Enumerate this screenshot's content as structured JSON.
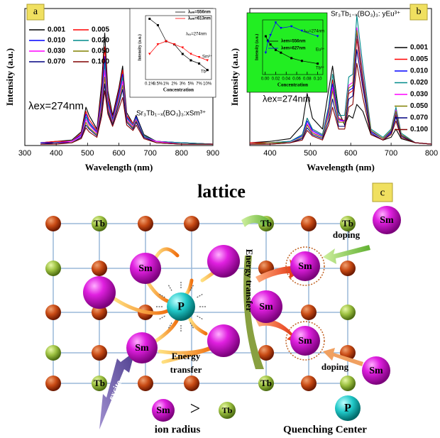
{
  "chart_data": [
    {
      "type": "line",
      "panel_label": "a",
      "x_label": "Wavelength (nm)",
      "y_label": "Intensity (a.u.)",
      "x": [
        350,
        400,
        450,
        480,
        495,
        505,
        530,
        545,
        555,
        565,
        580,
        600,
        612,
        625,
        645,
        655,
        680,
        720,
        800,
        900
      ],
      "xlim": [
        300,
        900
      ],
      "xticks": [
        300,
        400,
        500,
        600,
        700,
        800,
        900
      ],
      "ylim": [
        0,
        100
      ],
      "grid": false,
      "legend": "upper left",
      "annotations": [
        "λex=274nm",
        "Sr₃Tb₁₋ₓ(BO₃)₃:xSm³⁺"
      ],
      "series": [
        {
          "name": "0.001",
          "color": "#000000",
          "values": [
            2,
            3,
            4,
            10,
            28,
            22,
            12,
            45,
            82,
            40,
            22,
            42,
            58,
            24,
            16,
            22,
            8,
            3,
            2,
            1
          ]
        },
        {
          "name": "0.005",
          "color": "#ff0000",
          "values": [
            2,
            3,
            3,
            9,
            25,
            19,
            11,
            40,
            72,
            36,
            20,
            40,
            55,
            22,
            16,
            21,
            7,
            3,
            2,
            1
          ]
        },
        {
          "name": "0.010",
          "color": "#0000ff",
          "values": [
            2,
            2,
            3,
            8,
            23,
            17,
            10,
            36,
            65,
            33,
            19,
            38,
            52,
            21,
            15,
            21,
            7,
            3,
            2,
            1
          ]
        },
        {
          "name": "0.020",
          "color": "#008b8b",
          "values": [
            1,
            2,
            3,
            7,
            21,
            16,
            9,
            33,
            60,
            31,
            18,
            36,
            50,
            20,
            15,
            20,
            7,
            3,
            2,
            1
          ]
        },
        {
          "name": "0.030",
          "color": "#ff00ff",
          "values": [
            1,
            2,
            3,
            7,
            19,
            15,
            9,
            30,
            55,
            29,
            17,
            34,
            47,
            19,
            14,
            19,
            6,
            3,
            1,
            1
          ]
        },
        {
          "name": "0.050",
          "color": "#808000",
          "values": [
            1,
            2,
            2,
            6,
            17,
            13,
            8,
            27,
            50,
            27,
            16,
            32,
            44,
            18,
            13,
            18,
            6,
            2,
            1,
            1
          ]
        },
        {
          "name": "0.070",
          "color": "#000080",
          "values": [
            1,
            2,
            2,
            6,
            15,
            12,
            7,
            24,
            45,
            25,
            15,
            30,
            41,
            17,
            12,
            17,
            6,
            2,
            1,
            1
          ]
        },
        {
          "name": "0.100",
          "color": "#800000",
          "values": [
            1,
            1,
            2,
            5,
            13,
            10,
            6,
            21,
            40,
            23,
            14,
            27,
            35,
            15,
            11,
            15,
            5,
            2,
            1,
            1
          ]
        }
      ]
    },
    {
      "type": "line",
      "x_label": "Concentration",
      "y_label": "Intensity (a.u.)",
      "background": "#ffffff",
      "categories": [
        "0.1%",
        "0.5%",
        "1%",
        "2%",
        "3%",
        "5%",
        "7%",
        "10%"
      ],
      "ylim": [
        0,
        100
      ],
      "legend": "upper right",
      "annotations": [
        "λₑₓ=274nm",
        "Sm³⁺",
        "Tb³⁺"
      ],
      "series": [
        {
          "name": "λₑₘ=556nm",
          "color": "#000000",
          "marker": "square",
          "values": [
            95,
            85,
            60,
            55,
            40,
            30,
            25,
            15
          ]
        },
        {
          "name": "λₑₘ=613nm",
          "color": "#ff0000",
          "marker": "triangle",
          "values": [
            40,
            55,
            60,
            55,
            50,
            40,
            35,
            30
          ]
        }
      ]
    },
    {
      "type": "line",
      "panel_label": "b",
      "x_label": "Wavelength (nm)",
      "y_label": "Intensity (a.u.)",
      "x": [
        350,
        400,
        450,
        480,
        492,
        505,
        530,
        545,
        555,
        570,
        585,
        595,
        605,
        615,
        630,
        650,
        680,
        700,
        712,
        725,
        760,
        800
      ],
      "xlim": [
        350,
        800
      ],
      "xticks": [
        400,
        500,
        600,
        700,
        800
      ],
      "ylim": [
        0,
        100
      ],
      "grid": false,
      "legend": "right",
      "annotations": [
        "λex=274nm",
        "Sr₃Tb₁₋ₓ(BO₃)₃: yEu³⁺"
      ],
      "series": [
        {
          "name": "0.001",
          "color": "#000000",
          "values": [
            2,
            3,
            5,
            15,
            38,
            20,
            12,
            40,
            58,
            25,
            15,
            22,
            20,
            30,
            25,
            8,
            4,
            6,
            12,
            5,
            2,
            1
          ]
        },
        {
          "name": "0.005",
          "color": "#ff0000",
          "values": [
            2,
            2,
            3,
            8,
            20,
            12,
            8,
            28,
            48,
            20,
            18,
            38,
            40,
            78,
            45,
            10,
            5,
            10,
            22,
            8,
            2,
            1
          ]
        },
        {
          "name": "0.010",
          "color": "#0000ff",
          "values": [
            1,
            2,
            3,
            7,
            18,
            11,
            7,
            26,
            45,
            19,
            18,
            40,
            42,
            82,
            48,
            10,
            5,
            10,
            24,
            8,
            2,
            1
          ]
        },
        {
          "name": "0.020",
          "color": "#008b8b",
          "values": [
            1,
            2,
            3,
            8,
            20,
            12,
            8,
            28,
            52,
            22,
            22,
            50,
            52,
            95,
            58,
            12,
            6,
            12,
            28,
            9,
            2,
            1
          ]
        },
        {
          "name": "0.030",
          "color": "#ff00ff",
          "values": [
            1,
            2,
            2,
            6,
            16,
            10,
            6,
            24,
            42,
            18,
            18,
            44,
            46,
            86,
            52,
            11,
            5,
            11,
            26,
            8,
            2,
            1
          ]
        },
        {
          "name": "0.050",
          "color": "#808000",
          "values": [
            1,
            2,
            2,
            6,
            15,
            9,
            6,
            22,
            40,
            17,
            17,
            42,
            44,
            84,
            50,
            11,
            5,
            11,
            25,
            8,
            2,
            1
          ]
        },
        {
          "name": "0.070",
          "color": "#000080",
          "values": [
            1,
            1,
            2,
            5,
            13,
            8,
            5,
            18,
            34,
            14,
            14,
            34,
            36,
            70,
            42,
            9,
            4,
            9,
            21,
            7,
            2,
            1
          ]
        },
        {
          "name": "0.100",
          "color": "#800000",
          "values": [
            1,
            1,
            2,
            4,
            11,
            7,
            4,
            15,
            28,
            12,
            12,
            28,
            30,
            60,
            35,
            8,
            4,
            8,
            18,
            6,
            2,
            1
          ]
        }
      ]
    },
    {
      "type": "line",
      "x_label": "Concentration",
      "y_label": "Intensity (a.u.)",
      "background": "#22ee22",
      "x": [
        0.001,
        0.005,
        0.01,
        0.02,
        0.03,
        0.05,
        0.07,
        0.1
      ],
      "xlim": [
        -0.005,
        0.11
      ],
      "xticks": [
        {
          "value": 0,
          "label": "0.00"
        },
        {
          "value": 0.02,
          "label": "0.02"
        },
        {
          "value": 0.04,
          "label": "0.04"
        },
        {
          "value": 0.06,
          "label": "0.06"
        },
        {
          "value": 0.08,
          "label": "0.08"
        },
        {
          "value": 0.1,
          "label": "0.10"
        }
      ],
      "ylim": [
        0,
        100
      ],
      "legend": "center",
      "annotations": [
        "λₑₓ=274nm",
        "Eu³⁺",
        "Tb³⁺"
      ],
      "series": [
        {
          "name": "λem=556nm",
          "color": "#000000",
          "marker": "square",
          "values": [
            70,
            62,
            55,
            45,
            40,
            30,
            25,
            20
          ]
        },
        {
          "name": "λem=627nm",
          "color": "#0000ff",
          "marker": "triangle",
          "values": [
            40,
            60,
            72,
            95,
            85,
            88,
            80,
            70
          ]
        }
      ]
    }
  ],
  "diagram": {
    "title": "lattice",
    "panel_label": "c",
    "tb": "Tb",
    "sm": "Sm",
    "p": "P",
    "energy_transfer": [
      "Energy",
      "transfer"
    ],
    "energy_transfer_vertical": "Energy transfer",
    "doping": "doping",
    "excite": "excite",
    "greater": ">",
    "ion_radius": "ion radius",
    "quenching_center": "Quenching Center"
  }
}
